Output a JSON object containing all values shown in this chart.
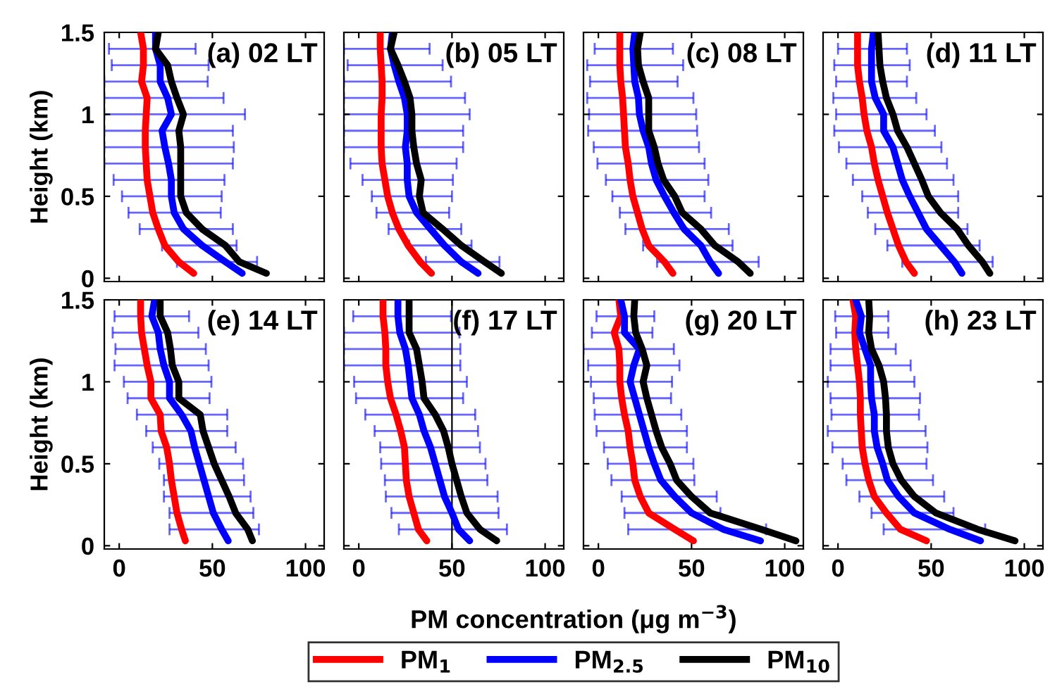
{
  "chart_data": [
    {
      "type": "line",
      "title": "(a) 02 LT",
      "ylabel": "Height (km)",
      "orientation": "horizontal",
      "tick_labels": "y",
      "legend": "bottom",
      "grid": false,
      "line_style": "solid",
      "marker": "none",
      "xlim": [
        -8,
        110
      ],
      "xticks": [
        0,
        50,
        100
      ],
      "ylim": [
        -0.02,
        1.5
      ],
      "yticks": [
        0,
        0.5,
        1,
        1.5
      ],
      "x": [
        0.03,
        0.1,
        0.2,
        0.3,
        0.4,
        0.5,
        0.6,
        0.7,
        0.8,
        0.9,
        1.0,
        1.1,
        1.2,
        1.3,
        1.4,
        1.5
      ],
      "series": [
        {
          "name": "PM$_{1}$",
          "color": "#ff0000",
          "values": [
            40,
            32,
            24.5,
            21,
            18,
            16.5,
            15,
            14.5,
            14,
            14,
            14.5,
            15,
            12,
            13,
            13,
            11.5
          ]
        },
        {
          "name": "PM$_{2.5}$",
          "color": "#0000ff",
          "values": [
            66,
            57,
            44.5,
            34.5,
            29.5,
            28,
            28,
            26.5,
            24.5,
            23,
            28,
            26,
            22,
            22,
            19.5,
            19.5
          ],
          "errors": [
            null,
            [
              31,
              74
            ],
            [
              23,
              63
            ],
            [
              11,
              61
            ],
            [
              5,
              54.5
            ],
            [
              1.5,
              55
            ],
            [
              -3,
              56.5
            ],
            [
              -8,
              61
            ],
            [
              -8,
              61.5
            ],
            [
              -8,
              61
            ],
            [
              -8,
              67.5
            ],
            [
              -8,
              56
            ],
            [
              -8,
              47.5
            ],
            [
              -4,
              48
            ],
            [
              -5.5,
              41
            ],
            null
          ]
        },
        {
          "name": "PM$_{10}$",
          "color": "#000000",
          "values": [
            79,
            64.5,
            57,
            44.5,
            36,
            33,
            33,
            33,
            33,
            32,
            34.5,
            31,
            28,
            26,
            19.5,
            21
          ]
        }
      ]
    },
    {
      "type": "line",
      "title": "(b) 05 LT",
      "orientation": "horizontal",
      "tick_labels": false,
      "line_style": "solid",
      "xlim": [
        -8,
        110
      ],
      "xticks": [
        0,
        50,
        100
      ],
      "ylim": [
        -0.02,
        1.5
      ],
      "yticks": [
        0,
        0.5,
        1,
        1.5
      ],
      "x": [
        0.03,
        0.1,
        0.2,
        0.3,
        0.4,
        0.5,
        0.6,
        0.7,
        0.8,
        0.9,
        1.0,
        1.1,
        1.2,
        1.3,
        1.4,
        1.5
      ],
      "series": [
        {
          "color": "#ff0000",
          "values": [
            39,
            33,
            26.5,
            21.5,
            18,
            15.5,
            14,
            12.5,
            12,
            12,
            12,
            12.5,
            12.5,
            12,
            11.5,
            11.5
          ]
        },
        {
          "color": "#0000ff",
          "values": [
            64,
            55,
            46,
            38.5,
            31,
            27,
            26,
            26,
            25,
            26,
            26,
            24.5,
            21.5,
            19,
            17,
            18
          ],
          "errors": [
            null,
            [
              36,
              75.5
            ],
            [
              27,
              60.5
            ],
            [
              16,
              55
            ],
            [
              9.5,
              48.5
            ],
            [
              7,
              50
            ],
            [
              2,
              50.5
            ],
            [
              -4.5,
              52.5
            ],
            [
              -8,
              56
            ],
            [
              -8,
              56
            ],
            [
              -8,
              59.5
            ],
            [
              -8,
              57
            ],
            [
              -8,
              49.5
            ],
            [
              -6,
              45
            ],
            [
              -8,
              38
            ],
            null
          ]
        },
        {
          "color": "#000000",
          "values": [
            76.5,
            67.5,
            55,
            45,
            34.5,
            32.5,
            33.5,
            31,
            29.5,
            28.5,
            28.5,
            27.5,
            24.5,
            21,
            17,
            19
          ]
        }
      ]
    },
    {
      "type": "line",
      "title": "(c) 08 LT",
      "orientation": "horizontal",
      "tick_labels": false,
      "line_style": "solid",
      "xlim": [
        -8,
        110
      ],
      "xticks": [
        0,
        50,
        100
      ],
      "ylim": [
        -0.02,
        1.5
      ],
      "yticks": [
        0,
        0.5,
        1,
        1.5
      ],
      "x": [
        0.03,
        0.1,
        0.2,
        0.3,
        0.4,
        0.5,
        0.6,
        0.7,
        0.8,
        0.9,
        1.0,
        1.1,
        1.2,
        1.3,
        1.4,
        1.5
      ],
      "series": [
        {
          "color": "#ff0000",
          "values": [
            40,
            35.5,
            27,
            23.5,
            21,
            18.5,
            17,
            16,
            14.5,
            14,
            13.5,
            13,
            12,
            11.5,
            11.5,
            11.5
          ]
        },
        {
          "color": "#0000ff",
          "values": [
            64.5,
            60,
            55,
            46,
            40.5,
            35.5,
            31,
            28.5,
            27,
            24,
            22,
            21.5,
            19.5,
            19,
            18.5,
            19.5
          ],
          "errors": [
            null,
            [
              31.5,
              86
            ],
            [
              24,
              72
            ],
            [
              14.5,
              70
            ],
            [
              11.5,
              60.5
            ],
            [
              7.5,
              57
            ],
            [
              4,
              59
            ],
            [
              -0.5,
              57
            ],
            [
              -2.5,
              54
            ],
            [
              -5.5,
              53
            ],
            [
              -5,
              52.5
            ],
            [
              -6,
              51
            ],
            [
              -4.5,
              42.5
            ],
            [
              -6,
              45.5
            ],
            [
              -2,
              40
            ],
            null
          ]
        },
        {
          "color": "#000000",
          "values": [
            81.5,
            75,
            62.5,
            55,
            45,
            41,
            35,
            32,
            30,
            27,
            27,
            27,
            24,
            21.5,
            21,
            22.5
          ]
        }
      ]
    },
    {
      "type": "line",
      "title": "(d) 11 LT",
      "orientation": "horizontal",
      "tick_labels": false,
      "line_style": "solid",
      "xlim": [
        -8,
        110
      ],
      "xticks": [
        0,
        50,
        100
      ],
      "ylim": [
        -0.02,
        1.5
      ],
      "yticks": [
        0,
        0.5,
        1,
        1.5
      ],
      "x": [
        0.03,
        0.1,
        0.2,
        0.3,
        0.4,
        0.5,
        0.6,
        0.7,
        0.8,
        0.9,
        1.0,
        1.1,
        1.2,
        1.3,
        1.4,
        1.5
      ],
      "series": [
        {
          "color": "#ff0000",
          "values": [
            41,
            36.5,
            32.5,
            29.5,
            26.5,
            24,
            21.5,
            19.5,
            18,
            15.5,
            14,
            13,
            11.5,
            10.5,
            10.5,
            10.5
          ]
        },
        {
          "color": "#0000ff",
          "values": [
            66.5,
            62.5,
            55,
            47.5,
            43,
            38.5,
            34.5,
            32,
            29.5,
            24.5,
            24.5,
            20,
            18,
            18,
            18,
            19
          ],
          "errors": [
            null,
            [
              34.5,
              83
            ],
            [
              26.5,
              76
            ],
            [
              20,
              69.5
            ],
            [
              16,
              64.5
            ],
            [
              13,
              64.5
            ],
            [
              8,
              62
            ],
            [
              4.5,
              58.5
            ],
            [
              0.5,
              55.5
            ],
            [
              -2,
              52
            ],
            [
              -1,
              47.5
            ],
            [
              -2.5,
              42
            ],
            [
              -1,
              37
            ],
            [
              -2,
              38.5
            ],
            [
              0,
              37
            ],
            null
          ]
        },
        {
          "color": "#000000",
          "values": [
            81.5,
            77.5,
            70,
            64,
            55,
            48.5,
            45,
            41,
            37,
            32,
            29.5,
            26,
            24,
            22.5,
            22,
            21.5
          ]
        }
      ]
    },
    {
      "type": "line",
      "title": "(e) 14 LT",
      "ylabel": "Height (km)",
      "orientation": "horizontal",
      "line_style": "solid",
      "xlim": [
        -8,
        110
      ],
      "xticks": [
        0,
        50,
        100
      ],
      "ylim": [
        -0.02,
        1.5
      ],
      "yticks": [
        0,
        0.5,
        1,
        1.5
      ],
      "x": [
        0.03,
        0.1,
        0.2,
        0.3,
        0.4,
        0.5,
        0.6,
        0.7,
        0.8,
        0.9,
        1.0,
        1.1,
        1.2,
        1.3,
        1.4,
        1.5
      ],
      "series": [
        {
          "color": "#ff0000",
          "values": [
            35.5,
            33.5,
            31,
            29.5,
            28,
            27,
            25.5,
            22.5,
            22,
            17,
            17,
            15,
            13.5,
            12,
            11.5,
            11.5
          ]
        },
        {
          "color": "#0000ff",
          "values": [
            58.5,
            55,
            50.5,
            48,
            45.5,
            43,
            40.5,
            38.5,
            33.5,
            27,
            27,
            24,
            22,
            21,
            17.5,
            19
          ],
          "errors": [
            null,
            [
              27,
              75
            ],
            [
              27,
              72
            ],
            [
              24,
              70.5
            ],
            [
              24,
              67
            ],
            [
              21.5,
              66.5
            ],
            [
              18,
              62.5
            ],
            [
              14.5,
              58
            ],
            [
              9.5,
              58
            ],
            [
              4.5,
              48.5
            ],
            [
              2.5,
              49.5
            ],
            [
              -2.5,
              48
            ],
            [
              -2,
              46.5
            ],
            [
              -3.5,
              42.5
            ],
            [
              -2.5,
              37.5
            ],
            null
          ]
        },
        {
          "color": "#000000",
          "values": [
            71.5,
            69,
            62.5,
            59,
            55,
            51,
            48,
            45,
            43.5,
            32,
            32,
            28.5,
            27.5,
            26,
            22,
            22
          ]
        }
      ]
    },
    {
      "type": "line",
      "title": "(f) 17 LT",
      "orientation": "horizontal",
      "tick_labels": "x",
      "line_style": "solid",
      "xlim": [
        -8,
        110
      ],
      "xticks": [
        0,
        50,
        100
      ],
      "ylim": [
        -0.02,
        1.5
      ],
      "yticks": [
        0,
        0.5,
        1,
        1.5
      ],
      "ref_lines": [
        {
          "axis": "x",
          "value": 50,
          "color": "#000000"
        }
      ],
      "x": [
        0.03,
        0.1,
        0.2,
        0.3,
        0.4,
        0.5,
        0.6,
        0.7,
        0.8,
        0.9,
        1.0,
        1.1,
        1.2,
        1.3,
        1.4,
        1.5
      ],
      "series": [
        {
          "color": "#ff0000",
          "values": [
            36.5,
            32,
            29.5,
            27,
            25.5,
            25,
            24.5,
            22.5,
            20,
            17,
            15.5,
            14.5,
            14.5,
            14,
            13,
            13
          ]
        },
        {
          "color": "#0000ff",
          "values": [
            59.5,
            53.5,
            50,
            46,
            43.5,
            41,
            38.5,
            35,
            32.5,
            28.5,
            27.5,
            26.5,
            25,
            22,
            21,
            21
          ],
          "errors": [
            null,
            [
              21.5,
              79.5
            ],
            [
              17.5,
              75
            ],
            [
              14.5,
              74.5
            ],
            [
              14,
              69
            ],
            [
              12,
              68
            ],
            [
              11.5,
              65
            ],
            [
              8.5,
              64
            ],
            [
              3.5,
              62.5
            ],
            [
              -1.5,
              56
            ],
            [
              -2.5,
              58
            ],
            [
              -8,
              54.5
            ],
            [
              -8,
              54.5
            ],
            [
              -8,
              54
            ],
            [
              -3,
              49.5
            ],
            null
          ]
        },
        {
          "color": "#000000",
          "values": [
            74,
            65,
            58,
            55,
            52.5,
            50,
            48,
            45.5,
            41,
            35,
            34,
            32.5,
            31,
            27,
            27,
            27
          ]
        }
      ]
    },
    {
      "type": "line",
      "title": "(g) 20 LT",
      "orientation": "horizontal",
      "tick_labels": "x",
      "line_style": "solid",
      "xlim": [
        -8,
        110
      ],
      "xticks": [
        0,
        50,
        100
      ],
      "ylim": [
        -0.02,
        1.5
      ],
      "yticks": [
        0,
        0.5,
        1,
        1.5
      ],
      "x": [
        0.03,
        0.1,
        0.2,
        0.3,
        0.4,
        0.5,
        0.6,
        0.7,
        0.8,
        0.9,
        1.0,
        1.1,
        1.2,
        1.3,
        1.4,
        1.5
      ],
      "series": [
        {
          "color": "#ff0000",
          "values": [
            51,
            41,
            27,
            22.5,
            19.5,
            18.5,
            17,
            16,
            14,
            12.5,
            11.5,
            11.5,
            11,
            8.5,
            12,
            11
          ]
        },
        {
          "color": "#0000ff",
          "values": [
            87,
            67,
            50,
            41,
            33.5,
            30,
            27,
            24.5,
            22,
            19.5,
            17,
            19,
            22,
            14,
            14,
            12
          ],
          "errors": [
            null,
            [
              16,
              90
            ],
            [
              14,
              65.5
            ],
            [
              12.5,
              63.5
            ],
            [
              7,
              51.5
            ],
            [
              5,
              51
            ],
            [
              3,
              47.5
            ],
            [
              -1,
              47.5
            ],
            [
              -2,
              44.5
            ],
            [
              -2.5,
              39
            ],
            [
              -4,
              39.5
            ],
            [
              -5.5,
              43.5
            ],
            [
              -8,
              40.5
            ],
            [
              -3.5,
              29
            ],
            [
              -1,
              30
            ],
            null
          ]
        },
        {
          "color": "#000000",
          "values": [
            106,
            87.5,
            60,
            50,
            42,
            38.5,
            34,
            31,
            28.5,
            26,
            24,
            26,
            23.5,
            20,
            19,
            19.5
          ]
        }
      ]
    },
    {
      "type": "line",
      "title": "(h) 23 LT",
      "xlabel": "PM concentration (μg m$^{−3}$)",
      "orientation": "horizontal",
      "tick_labels": "x",
      "line_style": "solid",
      "xlim": [
        -8,
        110
      ],
      "xticks": [
        0,
        50,
        100
      ],
      "ylim": [
        -0.02,
        1.5
      ],
      "yticks": [
        0,
        0.5,
        1,
        1.5
      ],
      "x": [
        0.03,
        0.1,
        0.2,
        0.3,
        0.4,
        0.5,
        0.6,
        0.7,
        0.8,
        0.9,
        1.0,
        1.1,
        1.2,
        1.3,
        1.4,
        1.5
      ],
      "series": [
        {
          "color": "#ff0000",
          "values": [
            47.5,
            33.5,
            26,
            19.5,
            16.5,
            14.5,
            13,
            12.5,
            12,
            12,
            11.5,
            10.5,
            9.5,
            9,
            9.5,
            8
          ]
        },
        {
          "color": "#0000ff",
          "values": [
            76.5,
            60,
            41,
            32.5,
            26.5,
            24,
            21,
            19.5,
            19.5,
            18,
            17.5,
            17.5,
            14.5,
            11.5,
            12.5,
            9.5
          ],
          "errors": [
            null,
            [
              24.5,
              79
            ],
            [
              18,
              62
            ],
            [
              11.5,
              57
            ],
            [
              4.5,
              51
            ],
            [
              2.5,
              47.5
            ],
            [
              -3,
              48
            ],
            [
              -5.5,
              47
            ],
            [
              -3.5,
              43.5
            ],
            [
              -4,
              44
            ],
            [
              -5.5,
              41
            ],
            [
              -4,
              39
            ],
            [
              -4,
              31
            ],
            [
              -1,
              27
            ],
            [
              -1.5,
              27
            ],
            null
          ]
        },
        {
          "color": "#000000",
          "values": [
            95,
            75,
            52.5,
            41,
            34,
            29.5,
            27,
            26,
            26,
            25.5,
            24.5,
            22,
            18,
            16.5,
            17,
            16.5
          ]
        }
      ]
    }
  ]
}
